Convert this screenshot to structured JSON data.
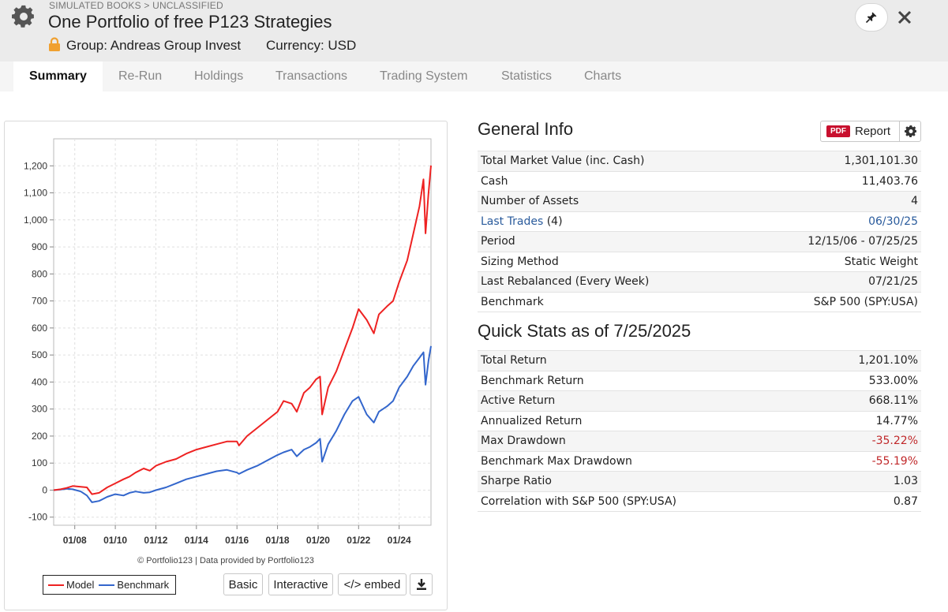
{
  "header": {
    "breadcrumb": "SIMULATED BOOKS > UNCLASSIFIED",
    "title": "One Portfolio of free P123 Strategies",
    "group": "Group: Andreas Group Invest",
    "currency": "Currency: USD"
  },
  "tabs": [
    {
      "label": "Summary"
    },
    {
      "label": "Re-Run"
    },
    {
      "label": "Holdings"
    },
    {
      "label": "Transactions"
    },
    {
      "label": "Trading System"
    },
    {
      "label": "Statistics"
    },
    {
      "label": "Charts"
    }
  ],
  "chart_data": {
    "type": "line",
    "title": "",
    "xlabel": "",
    "ylabel": "",
    "x_ticks": [
      "01/08",
      "01/10",
      "01/12",
      "01/14",
      "01/16",
      "01/18",
      "01/20",
      "01/22",
      "01/24"
    ],
    "y_ticks": [
      "-100",
      "0",
      "100",
      "200",
      "300",
      "400",
      "500",
      "600",
      "700",
      "800",
      "900",
      "1,000",
      "1,100",
      "1,200"
    ],
    "ylim": [
      -100,
      1200
    ],
    "xlim": [
      2006.96,
      2025.57
    ],
    "series": [
      {
        "name": "Model",
        "color": "#ee2222",
        "x": [
          2006.96,
          2007.3,
          2007.6,
          2007.9,
          2008.3,
          2008.6,
          2008.85,
          2009.2,
          2009.6,
          2010.0,
          2010.4,
          2010.7,
          2011.0,
          2011.4,
          2011.7,
          2012.0,
          2012.5,
          2013.0,
          2013.5,
          2014.0,
          2014.5,
          2015.0,
          2015.5,
          2016.0,
          2016.1,
          2016.5,
          2017.0,
          2017.5,
          2018.0,
          2018.3,
          2018.7,
          2018.95,
          2019.3,
          2019.6,
          2019.9,
          2020.1,
          2020.2,
          2020.5,
          2020.9,
          2021.3,
          2021.7,
          2022.0,
          2022.4,
          2022.75,
          2023.0,
          2023.4,
          2023.7,
          2024.0,
          2024.4,
          2024.7,
          2025.0,
          2025.2,
          2025.3,
          2025.45,
          2025.57
        ],
        "values": [
          0,
          3,
          8,
          15,
          12,
          10,
          -15,
          -10,
          10,
          25,
          40,
          50,
          65,
          80,
          72,
          90,
          105,
          115,
          135,
          150,
          160,
          170,
          180,
          180,
          165,
          200,
          230,
          260,
          290,
          330,
          320,
          290,
          360,
          380,
          410,
          420,
          280,
          380,
          440,
          520,
          600,
          670,
          630,
          580,
          650,
          680,
          700,
          770,
          850,
          950,
          1050,
          1150,
          950,
          1100,
          1201
        ]
      },
      {
        "name": "Benchmark",
        "color": "#3366cc",
        "x": [
          2006.96,
          2007.3,
          2007.6,
          2007.9,
          2008.3,
          2008.6,
          2008.85,
          2009.2,
          2009.6,
          2010.0,
          2010.4,
          2010.7,
          2011.0,
          2011.4,
          2011.7,
          2012.0,
          2012.5,
          2013.0,
          2013.5,
          2014.0,
          2014.5,
          2015.0,
          2015.5,
          2016.0,
          2016.1,
          2016.5,
          2017.0,
          2017.5,
          2018.0,
          2018.3,
          2018.7,
          2018.95,
          2019.3,
          2019.6,
          2019.9,
          2020.1,
          2020.2,
          2020.5,
          2020.9,
          2021.3,
          2021.7,
          2022.0,
          2022.4,
          2022.75,
          2023.0,
          2023.4,
          2023.7,
          2024.0,
          2024.4,
          2024.7,
          2025.0,
          2025.2,
          2025.3,
          2025.45,
          2025.57
        ],
        "values": [
          0,
          2,
          5,
          3,
          -5,
          -20,
          -45,
          -40,
          -25,
          -15,
          -20,
          -10,
          -5,
          -10,
          -8,
          0,
          10,
          25,
          40,
          50,
          60,
          70,
          75,
          65,
          60,
          75,
          90,
          110,
          130,
          140,
          150,
          125,
          150,
          160,
          175,
          190,
          105,
          170,
          220,
          280,
          330,
          345,
          280,
          250,
          290,
          310,
          330,
          380,
          420,
          460,
          490,
          510,
          390,
          480,
          533
        ]
      }
    ]
  },
  "chart_panel": {
    "credit": "© Portfolio123 | Data provided by Portfolio123",
    "legend": {
      "model": "Model",
      "benchmark": "Benchmark"
    },
    "buttons": {
      "basic": "Basic",
      "interactive": "Interactive",
      "embed": "</> embed"
    }
  },
  "general_info": {
    "title": "General Info",
    "report_badge": "PDF",
    "report_label": "Report",
    "rows": [
      {
        "label": "Total Market Value (inc. Cash)",
        "value": "1,301,101.30"
      },
      {
        "label": "Cash",
        "value": "11,403.76"
      },
      {
        "label": "Number of Assets",
        "value": "4"
      },
      {
        "label": "Last Trades",
        "extra": "(4)",
        "value": "06/30/25"
      },
      {
        "label": "Period",
        "value": "12/15/06 - 07/25/25"
      },
      {
        "label": "Sizing Method",
        "value": "Static Weight"
      },
      {
        "label": "Last Rebalanced (Every Week)",
        "value": "07/21/25"
      },
      {
        "label": "Benchmark",
        "value": "S&P 500 (SPY:USA)"
      }
    ]
  },
  "quick_stats": {
    "title": "Quick Stats as of 7/25/2025",
    "rows": [
      {
        "label": "Total Return",
        "value": "1,201.10%"
      },
      {
        "label": "Benchmark Return",
        "value": "533.00%"
      },
      {
        "label": "Active Return",
        "value": "668.11%"
      },
      {
        "label": "Annualized Return",
        "value": "14.77%"
      },
      {
        "label": "Max Drawdown",
        "value": "-35.22%"
      },
      {
        "label": "Benchmark Max Drawdown",
        "value": "-55.19%"
      },
      {
        "label": "Sharpe Ratio",
        "value": "1.03"
      },
      {
        "label": "Correlation with S&P 500 (SPY:USA)",
        "value": "0.87"
      }
    ]
  }
}
